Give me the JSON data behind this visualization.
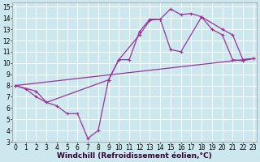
{
  "background_color": "#cce8ee",
  "grid_color": "#ffffff",
  "line_color": "#993399",
  "linewidth": 0.9,
  "markersize": 3,
  "xlim": [
    -0.3,
    23.3
  ],
  "ylim": [
    3,
    15.4
  ],
  "xtick_labels": [
    "0",
    "1",
    "2",
    "3",
    "4",
    "5",
    "6",
    "7",
    "8",
    "9",
    "10",
    "11",
    "12",
    "13",
    "14",
    "15",
    "16",
    "17",
    "18",
    "19",
    "20",
    "21",
    "22",
    "23"
  ],
  "xtick_vals": [
    0,
    1,
    2,
    3,
    4,
    5,
    6,
    7,
    8,
    9,
    10,
    11,
    12,
    13,
    14,
    15,
    16,
    17,
    18,
    19,
    20,
    21,
    22,
    23
  ],
  "ytick_labels": [
    "3",
    "4",
    "5",
    "6",
    "7",
    "8",
    "9",
    "10",
    "11",
    "12",
    "13",
    "14",
    "15"
  ],
  "ytick_vals": [
    3,
    4,
    5,
    6,
    7,
    8,
    9,
    10,
    11,
    12,
    13,
    14,
    15
  ],
  "xlabel": "Windchill (Refroidissement éolien,°C)",
  "xlabel_fontsize": 6.5,
  "tick_fontsize": 5.5,
  "series1_x": [
    0,
    1,
    2,
    3,
    4,
    5,
    6,
    7,
    8,
    9,
    10,
    11,
    12,
    13,
    14,
    15,
    16,
    17,
    18,
    19,
    20,
    21,
    22,
    23
  ],
  "series1_y": [
    8.0,
    7.7,
    7.0,
    6.5,
    6.2,
    5.5,
    5.5,
    3.3,
    4.0,
    8.5,
    10.3,
    10.3,
    12.8,
    13.9,
    13.9,
    14.8,
    14.3,
    14.4,
    14.1,
    13.0,
    12.5,
    10.3,
    10.2,
    10.4
  ],
  "series2_x": [
    0,
    2,
    3,
    9,
    10,
    12,
    13,
    14,
    15,
    16,
    18,
    20,
    21,
    22,
    23
  ],
  "series2_y": [
    8.0,
    7.5,
    6.5,
    8.5,
    10.3,
    12.5,
    13.8,
    13.9,
    11.2,
    11.0,
    14.1,
    13.0,
    12.5,
    10.3,
    10.4
  ],
  "series3_x": [
    0,
    23
  ],
  "series3_y": [
    8.0,
    10.4
  ]
}
